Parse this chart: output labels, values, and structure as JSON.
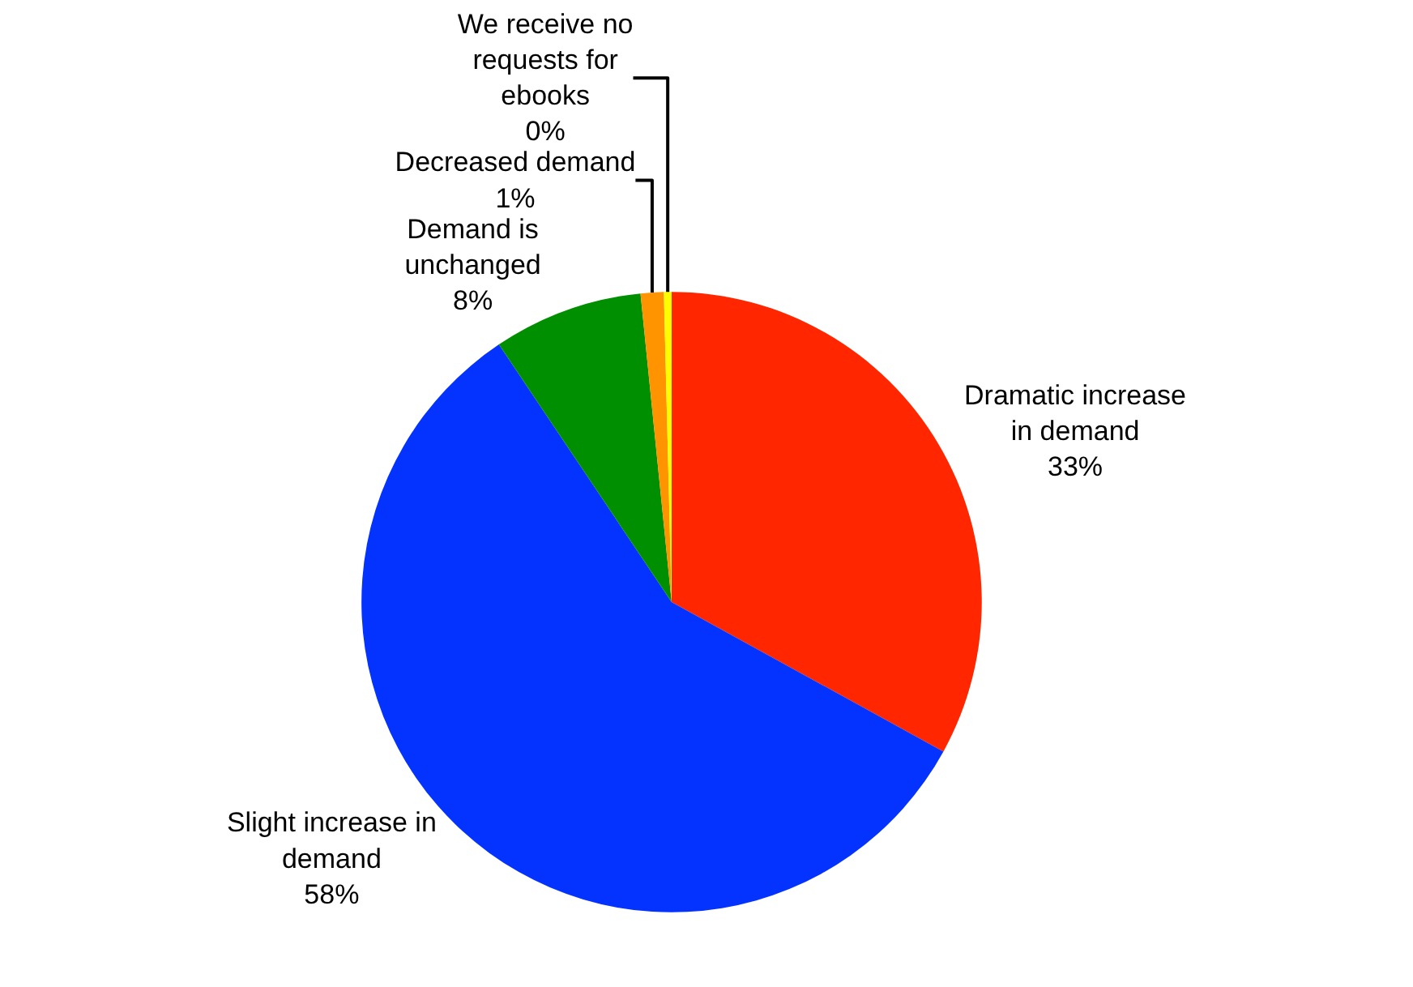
{
  "chart_data": {
    "type": "pie",
    "categories": [
      "Dramatic increase in demand",
      "Slight increase in demand",
      "Demand is unchanged",
      "Decreased demand",
      "We receive no requests for ebooks"
    ],
    "values": [
      33,
      57.6,
      7.8,
      1.2,
      0.4
    ],
    "value_labels": [
      "33%",
      "58%",
      "8%",
      "1%",
      "0%"
    ],
    "colors": [
      "#ff2600",
      "#0433ff",
      "#008f00",
      "#ff9300",
      "#fffb00"
    ],
    "legend": false
  }
}
